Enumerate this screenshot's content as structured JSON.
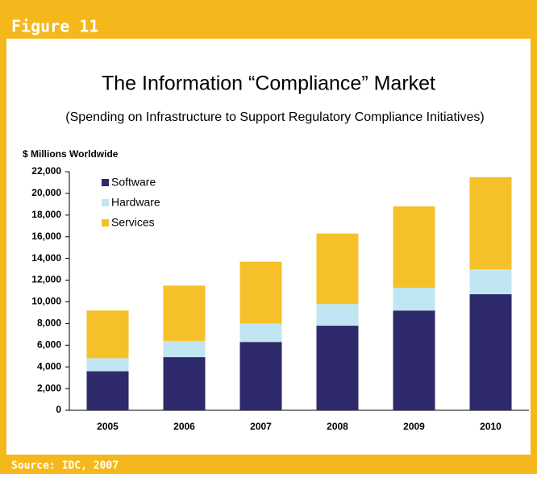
{
  "header": {
    "title": "Figure 11"
  },
  "footer": {
    "source": "Source: IDC, 2007"
  },
  "chart_data": {
    "type": "stacked_bar",
    "title": "The Information “Compliance” Market",
    "subtitle": "(Spending on Infrastructure to Support Regulatory  Compliance Initiatives)",
    "y_label": "$ Millions Worldwide",
    "categories": [
      "2005",
      "2006",
      "2007",
      "2008",
      "2009",
      "2010"
    ],
    "series": [
      {
        "name": "Software",
        "color": "#2e2a6b",
        "values": [
          3600,
          4900,
          6300,
          7800,
          9200,
          10700
        ]
      },
      {
        "name": "Hardware",
        "color": "#bfe6f2",
        "values": [
          1200,
          1500,
          1700,
          2000,
          2100,
          2300
        ]
      },
      {
        "name": "Services",
        "color": "#f5c02a",
        "values": [
          4400,
          5100,
          5700,
          6500,
          7500,
          8500
        ]
      }
    ],
    "ylim": [
      0,
      22000
    ],
    "yticks": [
      0,
      {
        "value": 2000,
        "label": "2,000"
      },
      {
        "value": 4000,
        "label": "4,000"
      },
      {
        "value": 6000,
        "label": "6,000"
      },
      {
        "value": 8000,
        "label": "8,000"
      },
      {
        "value": 10000,
        "label": "10,000"
      },
      {
        "value": 12000,
        "label": "12,000"
      },
      {
        "value": 14000,
        "label": "14,000"
      },
      {
        "value": 16000,
        "label": "16,000"
      },
      {
        "value": 18000,
        "label": "18,000"
      },
      {
        "value": 20000,
        "label": "20,000"
      },
      {
        "value": 22000,
        "label": "22,000"
      }
    ],
    "legend": "upper left"
  }
}
